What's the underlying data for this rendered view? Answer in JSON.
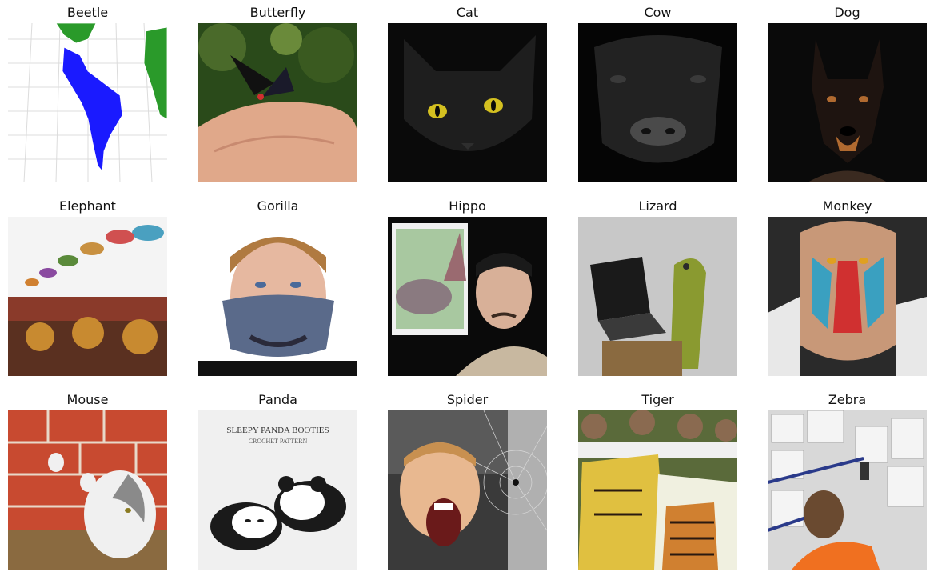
{
  "figure": {
    "panels": [
      {
        "label": "Beetle",
        "image_desc": "map of the Americas with blue and green landmasses",
        "colors": [
          "#ffffff",
          "#1a1aff",
          "#2a9a2a"
        ]
      },
      {
        "label": "Butterfly",
        "image_desc": "dark butterfly resting on a hand",
        "colors": [
          "#2a4a1a",
          "#e0a88a",
          "#111111"
        ]
      },
      {
        "label": "Cat",
        "image_desc": "black cat with yellow eyes",
        "colors": [
          "#0a0a0a",
          "#1e1e1e",
          "#d4c020"
        ]
      },
      {
        "label": "Cow",
        "image_desc": "black bull face in dark light",
        "colors": [
          "#050505",
          "#2a2a2a",
          "#777777"
        ]
      },
      {
        "label": "Dog",
        "image_desc": "doberman portrait on black background",
        "colors": [
          "#0a0a0a",
          "#3a2a20",
          "#b06a30"
        ]
      },
      {
        "label": "Elephant",
        "image_desc": "decorated elephants with parasols at a festival",
        "colors": [
          "#f4f4f4",
          "#7a4a2a",
          "#c88a30"
        ]
      },
      {
        "label": "Gorilla",
        "image_desc": "boy wearing a gorilla face mask",
        "colors": [
          "#ffffff",
          "#e6b8a0",
          "#5a6a8a"
        ]
      },
      {
        "label": "Hippo",
        "image_desc": "man beside a picture of a hippo",
        "colors": [
          "#0a0a0a",
          "#8a7a80",
          "#d8b098"
        ]
      },
      {
        "label": "Lizard",
        "image_desc": "lizard next to a laptop",
        "colors": [
          "#c8c8c8",
          "#8a9a30",
          "#1a1a1a"
        ]
      },
      {
        "label": "Monkey",
        "image_desc": "mandrill tattoo on an arm",
        "colors": [
          "#2a2a2a",
          "#d03030",
          "#3aa0c0"
        ]
      },
      {
        "label": "Mouse",
        "image_desc": "cat playing near a brick wall",
        "colors": [
          "#c84a30",
          "#f0f0f0",
          "#8a6a40"
        ]
      },
      {
        "label": "Panda",
        "image_desc": "crochet panda booties",
        "colors": [
          "#f0f0f0",
          "#1a1a1a",
          "#ffffff"
        ]
      },
      {
        "label": "Spider",
        "image_desc": "screaming boy and a spider web",
        "colors": [
          "#3a3a3a",
          "#e8b890",
          "#b0b0b0"
        ]
      },
      {
        "label": "Tiger",
        "image_desc": "students holding tiger paintings",
        "colors": [
          "#5a6a3a",
          "#e0c040",
          "#d08030"
        ]
      },
      {
        "label": "Zebra",
        "image_desc": "worker scanning boxes in a warehouse",
        "colors": [
          "#d8d8d8",
          "#f07020",
          "#2a3a8a"
        ]
      }
    ],
    "panel_text": {
      "panda_title": "SLEEPY PANDA BOOTIES",
      "panda_subtitle": "CROCHET PATTERN"
    }
  }
}
